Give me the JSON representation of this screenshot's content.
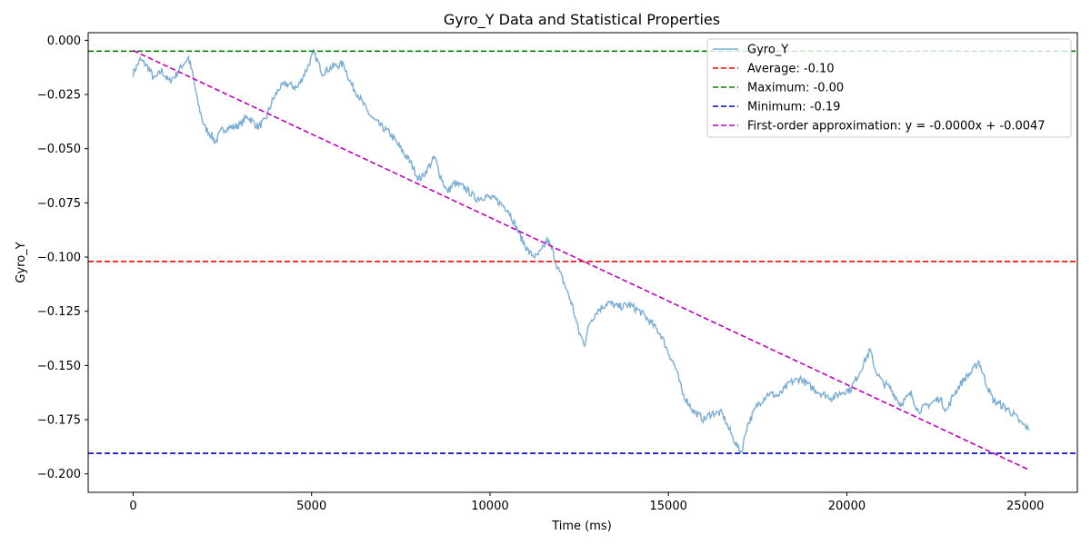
{
  "chart_data": {
    "type": "line",
    "title": "Gyro_Y Data and Statistical Properties",
    "xlabel": "Time (ms)",
    "ylabel": "Gyro_Y",
    "xlim": [
      -1260,
      26460
    ],
    "ylim": [
      -0.2085,
      0.0035
    ],
    "xticks": [
      0,
      5000,
      10000,
      15000,
      20000,
      25000
    ],
    "xtick_labels": [
      "0",
      "5000",
      "10000",
      "15000",
      "20000",
      "25000"
    ],
    "yticks": [
      0.0,
      -0.025,
      -0.05,
      -0.075,
      -0.1,
      -0.125,
      -0.15,
      -0.175,
      -0.2
    ],
    "ytick_labels": [
      "0.000",
      "−0.025",
      "−0.050",
      "−0.075",
      "−0.100",
      "−0.125",
      "−0.150",
      "−0.175",
      "−0.200"
    ],
    "grid": false,
    "legend_position": "top-right",
    "series": [
      {
        "name": "Gyro_Y",
        "color": "#7aadd4",
        "style": "solid",
        "x": [
          0,
          200,
          400,
          600,
          800,
          1000,
          1200,
          1400,
          1550,
          1700,
          1800,
          2000,
          2200,
          2300,
          2500,
          2800,
          3000,
          3200,
          3500,
          3700,
          3900,
          4100,
          4300,
          4600,
          4900,
          5050,
          5150,
          5300,
          5600,
          5900,
          6100,
          6300,
          6500,
          6700,
          6900,
          7200,
          7500,
          7800,
          8000,
          8100,
          8300,
          8450,
          8600,
          8800,
          9000,
          9300,
          9600,
          9900,
          10200,
          10500,
          10700,
          10900,
          11100,
          11300,
          11450,
          11600,
          11750,
          11900,
          12100,
          12300,
          12500,
          12650,
          12800,
          13000,
          13300,
          13600,
          13900,
          14200,
          14500,
          14800,
          15000,
          15200,
          15400,
          15700,
          16000,
          16200,
          16500,
          16800,
          16950,
          17050,
          17200,
          17500,
          17800,
          18100,
          18400,
          18700,
          19000,
          19300,
          19600,
          19900,
          20100,
          20300,
          20500,
          20650,
          20800,
          21000,
          21200,
          21500,
          21800,
          22000,
          22300,
          22600,
          22800,
          23000,
          23300,
          23500,
          23700,
          23900,
          24100,
          24300,
          24500,
          24700,
          24900,
          25000,
          25100
        ],
        "y": [
          -0.015,
          -0.009,
          -0.012,
          -0.018,
          -0.014,
          -0.019,
          -0.016,
          -0.011,
          -0.008,
          -0.018,
          -0.028,
          -0.04,
          -0.044,
          -0.047,
          -0.041,
          -0.04,
          -0.039,
          -0.035,
          -0.04,
          -0.037,
          -0.028,
          -0.022,
          -0.02,
          -0.022,
          -0.012,
          -0.006,
          -0.009,
          -0.015,
          -0.012,
          -0.011,
          -0.02,
          -0.025,
          -0.031,
          -0.036,
          -0.039,
          -0.043,
          -0.05,
          -0.057,
          -0.064,
          -0.063,
          -0.058,
          -0.054,
          -0.062,
          -0.07,
          -0.066,
          -0.068,
          -0.073,
          -0.072,
          -0.074,
          -0.078,
          -0.085,
          -0.092,
          -0.098,
          -0.1,
          -0.097,
          -0.092,
          -0.097,
          -0.105,
          -0.113,
          -0.122,
          -0.135,
          -0.14,
          -0.13,
          -0.125,
          -0.121,
          -0.123,
          -0.122,
          -0.125,
          -0.13,
          -0.136,
          -0.144,
          -0.151,
          -0.163,
          -0.171,
          -0.175,
          -0.172,
          -0.172,
          -0.183,
          -0.188,
          -0.19,
          -0.178,
          -0.168,
          -0.163,
          -0.164,
          -0.158,
          -0.156,
          -0.16,
          -0.163,
          -0.165,
          -0.162,
          -0.161,
          -0.155,
          -0.148,
          -0.143,
          -0.152,
          -0.158,
          -0.16,
          -0.168,
          -0.163,
          -0.171,
          -0.168,
          -0.165,
          -0.171,
          -0.163,
          -0.156,
          -0.153,
          -0.148,
          -0.158,
          -0.166,
          -0.168,
          -0.17,
          -0.173,
          -0.177,
          -0.178,
          -0.18
        ]
      },
      {
        "name": "Average: -0.10",
        "color": "#ff0000",
        "style": "dashed",
        "hline": -0.102
      },
      {
        "name": "Maximum: -0.00",
        "color": "#008000",
        "style": "dashed",
        "hline": -0.005
      },
      {
        "name": "Minimum: -0.19",
        "color": "#0000cc",
        "style": "dashed",
        "hline": -0.1905
      },
      {
        "name": "First-order approximation: y = -0.0000x + -0.0047",
        "color": "#bf00bf",
        "style": "dashed",
        "x": [
          0,
          25100
        ],
        "y": [
          -0.0047,
          -0.1981
        ]
      }
    ]
  }
}
